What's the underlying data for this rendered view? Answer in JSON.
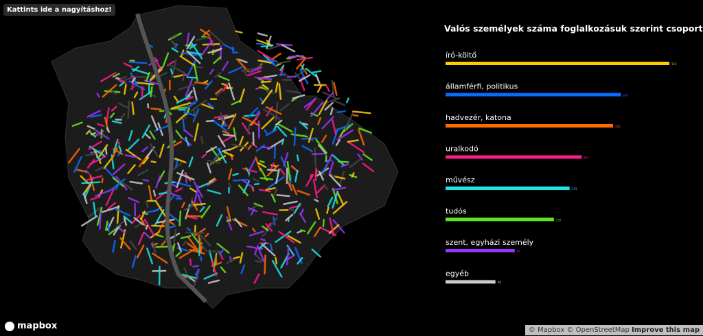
{
  "map": {
    "zoom_button": "Kattints ide a nagyításhoz!",
    "logo": "mapbox",
    "attribution": "© Mapbox © OpenStreetMap",
    "improve_link": "Improve this map"
  },
  "chart_data": {
    "type": "bar",
    "orientation": "horizontal",
    "title": "Valós személyek száma foglalkozásuk szerint csoportosítva",
    "categories": [
      "író-költő",
      "államférfi, politikus",
      "hadvezér, katona",
      "uralkodó",
      "művész",
      "tudós",
      "szent, egyházi személy",
      "egyéb"
    ],
    "values": [
      314,
      246,
      235,
      191,
      174,
      152,
      97,
      70
    ],
    "colors": [
      "#ffcc00",
      "#0a6cff",
      "#ff6a00",
      "#ff1a8c",
      "#19e6e6",
      "#66e61a",
      "#9933ff",
      "#cccccc"
    ]
  }
}
